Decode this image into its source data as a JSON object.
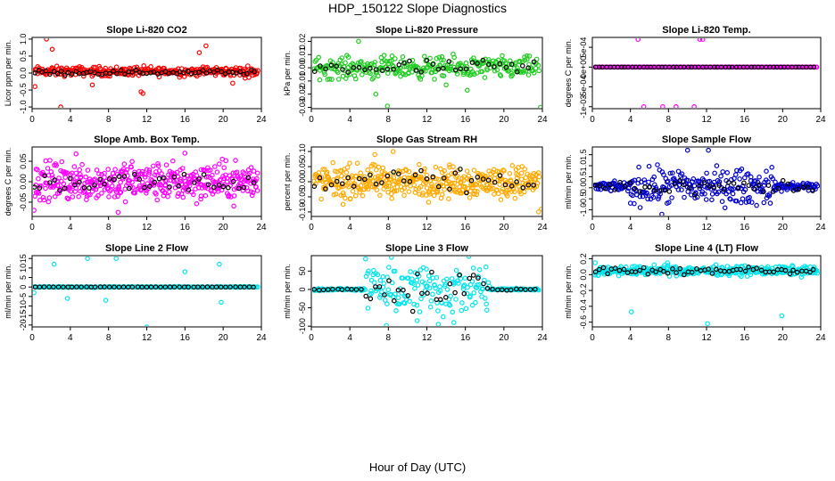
{
  "figure": {
    "title": "HDP_150122  Slope Diagnostics",
    "xlabel": "Hour of Day (UTC)"
  },
  "chart_data": [
    {
      "type": "scatter",
      "title": "Slope Li-820 CO2",
      "ylabel": "Licor ppm per min.",
      "xlim": [
        0,
        24
      ],
      "ylim": [
        -1.05,
        1.05
      ],
      "yticks": [
        -1.0,
        -0.5,
        0.0,
        0.5,
        1.0
      ],
      "ytick_labels": [
        "-1.0",
        "-0.5",
        "0.0",
        "0.5",
        "1.0"
      ],
      "xticks": [
        0,
        4,
        8,
        12,
        16,
        20,
        24
      ],
      "color": "#ff0000",
      "series": [
        {
          "name": "all",
          "pattern": "dense",
          "center": 0.05,
          "spread": 0.12,
          "count": 300
        },
        {
          "name": "hourly",
          "color": "#000000",
          "pattern": "band",
          "center": 0.02,
          "spread": 0.06,
          "count": 60
        }
      ],
      "outliers": [
        [
          1.5,
          1.0
        ],
        [
          2.1,
          0.7
        ],
        [
          0.3,
          -0.4
        ],
        [
          3.0,
          -1.0
        ],
        [
          6.3,
          -0.35
        ],
        [
          11.4,
          -0.55
        ],
        [
          11.6,
          -0.6
        ],
        [
          17.5,
          0.6
        ],
        [
          18.2,
          0.8
        ],
        [
          21.0,
          -0.3
        ],
        [
          22.3,
          -0.15
        ]
      ]
    },
    {
      "type": "scatter",
      "title": "Slope Li-820 Pressure",
      "ylabel": "kPa per min.",
      "xlim": [
        0,
        24
      ],
      "ylim": [
        -0.031,
        0.023
      ],
      "yticks": [
        -0.03,
        -0.02,
        -0.01,
        0.0,
        0.01,
        0.02
      ],
      "ytick_labels": [
        "-0.03",
        "-0.02",
        "-0.01",
        "0.00",
        "0.01",
        "0.02"
      ],
      "xticks": [
        0,
        4,
        8,
        12,
        16,
        20,
        24
      ],
      "color": "#22cc22",
      "series": [
        {
          "name": "all",
          "pattern": "dense",
          "center": 0.0,
          "spread": 0.007,
          "count": 300
        },
        {
          "name": "hourly",
          "color": "#000000",
          "pattern": "band",
          "center": 0.0,
          "spread": 0.005,
          "count": 40
        }
      ],
      "outliers": [
        [
          7.9,
          -0.029
        ],
        [
          23.8,
          -0.03
        ],
        [
          4.9,
          0.02
        ],
        [
          6.7,
          -0.02
        ],
        [
          14.0,
          -0.013
        ],
        [
          16.2,
          -0.017
        ]
      ]
    },
    {
      "type": "scatter",
      "title": "Slope Li-820 Temp.",
      "ylabel": "degrees C per min.",
      "xlim": [
        0,
        24
      ],
      "ylim": [
        -0.00105,
        0.00075
      ],
      "yticks": [
        -0.001,
        -0.0005,
        0.0,
        0.0005
      ],
      "ytick_labels": [
        "-1e-03",
        "-5e-04",
        "0e+00",
        "5e-04"
      ],
      "xticks": [
        0,
        4,
        8,
        12,
        16,
        20,
        24
      ],
      "color": "#ff00ff",
      "series": [
        {
          "name": "all",
          "pattern": "line",
          "center": 0.0,
          "spread": 0.0,
          "count": 200
        },
        {
          "name": "hourly",
          "color": "#000000",
          "pattern": "line",
          "center": 0.0,
          "spread": 0.0,
          "count": 60
        }
      ],
      "outliers": [
        [
          4.8,
          0.0007
        ],
        [
          11.3,
          0.0007
        ],
        [
          11.6,
          0.0007
        ],
        [
          5.4,
          -0.001
        ],
        [
          7.4,
          -0.001
        ],
        [
          8.8,
          -0.001
        ],
        [
          10.7,
          -0.001
        ]
      ]
    },
    {
      "type": "scatter",
      "title": "Slope Amb. Box Temp.",
      "ylabel": "degrees C per min.",
      "xlim": [
        0,
        24
      ],
      "ylim": [
        -0.085,
        0.085
      ],
      "yticks": [
        -0.05,
        0.0,
        0.05
      ],
      "ytick_labels": [
        "-0.05",
        "0.00",
        "0.05"
      ],
      "xticks": [
        0,
        4,
        8,
        12,
        16,
        20,
        24
      ],
      "color": "#ff00ff",
      "series": [
        {
          "name": "all",
          "pattern": "dense",
          "center": 0.0,
          "spread": 0.04,
          "count": 420
        },
        {
          "name": "hourly",
          "color": "#000000",
          "pattern": "band",
          "center": 0.0,
          "spread": 0.02,
          "count": 45
        }
      ],
      "outliers": [
        [
          4.6,
          0.068
        ],
        [
          16.0,
          0.07
        ],
        [
          0.2,
          -0.07
        ],
        [
          9.0,
          -0.075
        ]
      ]
    },
    {
      "type": "scatter",
      "title": "Slope Gas Stream RH",
      "ylabel": "percent per min.",
      "xlim": [
        0,
        24
      ],
      "ylim": [
        -0.115,
        0.115
      ],
      "yticks": [
        -0.1,
        -0.05,
        0.0,
        0.05,
        0.1
      ],
      "ytick_labels": [
        "-0.10",
        "-0.05",
        "0.00",
        "0.05",
        "0.10"
      ],
      "xticks": [
        0,
        4,
        8,
        12,
        16,
        20,
        24
      ],
      "color": "#ffaa00",
      "series": [
        {
          "name": "all",
          "pattern": "dense",
          "center": 0.0,
          "spread": 0.045,
          "count": 420
        },
        {
          "name": "hourly",
          "color": "#000000",
          "pattern": "band",
          "center": 0.0,
          "spread": 0.03,
          "count": 40
        }
      ],
      "outliers": [
        [
          6.6,
          0.09
        ],
        [
          8.5,
          0.1
        ],
        [
          23.6,
          -0.1
        ],
        [
          23.9,
          -0.09
        ],
        [
          3.3,
          -0.075
        ]
      ]
    },
    {
      "type": "scatter",
      "title": "Slope Sample Flow",
      "ylabel": "ml/min per min.",
      "xlim": [
        0,
        24
      ],
      "ylim": [
        -1.3,
        1.85
      ],
      "yticks": [
        -1.0,
        -0.5,
        0.0,
        0.5,
        1.0,
        1.5
      ],
      "ytick_labels": [
        "-1.0",
        "-0.5",
        "0.0",
        "0.5",
        "1.0",
        "1.5"
      ],
      "xticks": [
        0,
        4,
        8,
        12,
        16,
        20,
        24
      ],
      "color": "#0000cc",
      "series": [
        {
          "name": "all",
          "pattern": "wide",
          "center": 0.05,
          "spread": 0.7,
          "count": 320
        },
        {
          "name": "hourly",
          "color": "#000000",
          "pattern": "band",
          "center": 0.05,
          "spread": 0.3,
          "count": 45
        }
      ],
      "outliers": [
        [
          10.0,
          1.7
        ],
        [
          12.2,
          1.7
        ],
        [
          7.3,
          -1.2
        ],
        [
          4.0,
          -0.7
        ]
      ]
    },
    {
      "type": "scatter",
      "title": "Slope Line 2 Flow",
      "ylabel": "ml/min per min.",
      "xlim": [
        0,
        24
      ],
      "ylim": [
        -21,
        16.5
      ],
      "yticks": [
        -20,
        -15,
        -10,
        -5,
        0,
        5,
        10,
        15
      ],
      "ytick_labels": [
        "-20",
        "-15",
        "-10",
        "-5",
        "0",
        "5",
        "10",
        "15"
      ],
      "xticks": [
        0,
        4,
        8,
        12,
        16,
        20,
        24
      ],
      "color": "#00e5ee",
      "series": [
        {
          "name": "all",
          "pattern": "line",
          "center": 0.0,
          "spread": 1.0,
          "count": 200
        },
        {
          "name": "hourly",
          "color": "#000000",
          "pattern": "line",
          "center": 0.0,
          "spread": 0.3,
          "count": 48
        }
      ],
      "outliers": [
        [
          2.3,
          12
        ],
        [
          5.8,
          15
        ],
        [
          8.8,
          15
        ],
        [
          19.6,
          12
        ],
        [
          16.0,
          8
        ],
        [
          7.7,
          -7
        ],
        [
          3.7,
          -6
        ],
        [
          12.0,
          -21
        ],
        [
          19.8,
          -8
        ],
        [
          0.2,
          -3
        ]
      ]
    },
    {
      "type": "scatter",
      "title": "Slope Line 3 Flow",
      "ylabel": "ml/min per min.",
      "xlim": [
        0,
        24
      ],
      "ylim": [
        -102,
        92
      ],
      "yticks": [
        -100,
        -50,
        0,
        50
      ],
      "ytick_labels": [
        "-100",
        "-50",
        "0",
        "50"
      ],
      "xticks": [
        0,
        4,
        8,
        12,
        16,
        20,
        24
      ],
      "color": "#00e5ee",
      "series": [
        {
          "name": "all",
          "pattern": "burst",
          "center": 0.0,
          "spread": 60,
          "count": 280
        },
        {
          "name": "hourly",
          "color": "#000000",
          "pattern": "burst",
          "center": 0.0,
          "spread": 40,
          "count": 48
        }
      ],
      "outliers": [
        [
          13.2,
          -95
        ],
        [
          14.8,
          -90
        ],
        [
          7.8,
          -98
        ],
        [
          11.0,
          -85
        ]
      ]
    },
    {
      "type": "scatter",
      "title": "Slope Line 4 (LT) Flow",
      "ylabel": "ml/min per min.",
      "xlim": [
        0,
        24
      ],
      "ylim": [
        -0.66,
        0.24
      ],
      "yticks": [
        -0.6,
        -0.4,
        -0.2,
        0.0,
        0.2
      ],
      "ytick_labels": [
        "-0.6",
        "-0.4",
        "-0.2",
        "0.0",
        "0.2"
      ],
      "xticks": [
        0,
        4,
        8,
        12,
        16,
        20,
        24
      ],
      "color": "#00e5ee",
      "series": [
        {
          "name": "all",
          "pattern": "dense",
          "center": 0.05,
          "spread": 0.05,
          "count": 360
        },
        {
          "name": "hourly",
          "color": "#000000",
          "pattern": "band",
          "center": 0.05,
          "spread": 0.04,
          "count": 55
        }
      ],
      "outliers": [
        [
          4.1,
          -0.47
        ],
        [
          12.1,
          -0.62
        ],
        [
          19.9,
          -0.52
        ],
        [
          0.3,
          0.15
        ],
        [
          7.9,
          0.15
        ]
      ]
    }
  ]
}
